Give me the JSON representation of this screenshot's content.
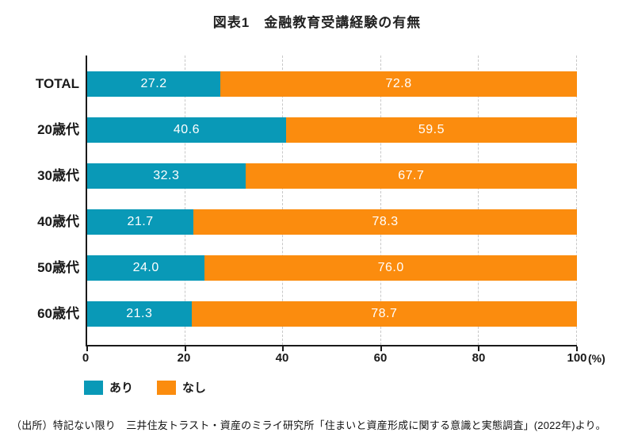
{
  "title": "図表1　金融教育受講経験の有無",
  "chart_data": {
    "type": "bar",
    "orientation": "horizontal",
    "stacked": true,
    "title": "図表1　金融教育受講経験の有無",
    "categories": [
      "TOTAL",
      "20歳代",
      "30歳代",
      "40歳代",
      "50歳代",
      "60歳代"
    ],
    "series": [
      {
        "name": "あり",
        "color": "#0999b7",
        "values": [
          27.2,
          40.6,
          32.3,
          21.7,
          24.0,
          21.3
        ],
        "labels": [
          "27.2",
          "40.6",
          "32.3",
          "21.7",
          "24.0",
          "21.3"
        ]
      },
      {
        "name": "なし",
        "color": "#fb8c0e",
        "values": [
          72.8,
          59.5,
          67.7,
          78.3,
          76.0,
          78.7
        ],
        "labels": [
          "72.8",
          "59.5",
          "67.7",
          "78.3",
          "76.0",
          "78.7"
        ]
      }
    ],
    "xlim": [
      0,
      100
    ],
    "x_ticks": [
      0,
      20,
      40,
      60,
      80,
      100
    ],
    "x_unit": "(%)",
    "grid": "vertical-dashed",
    "value_label_color": "#ffffff",
    "legend_position": "bottom-left"
  },
  "legend": {
    "items": [
      {
        "label": "あり",
        "color": "#0999b7"
      },
      {
        "label": "なし",
        "color": "#fb8c0e"
      }
    ]
  },
  "source_note": "（出所）特記ない限り　三井住友トラスト・資産のミライ研究所「住まいと資産形成に関する意識と実態調査」(2022年)より。"
}
